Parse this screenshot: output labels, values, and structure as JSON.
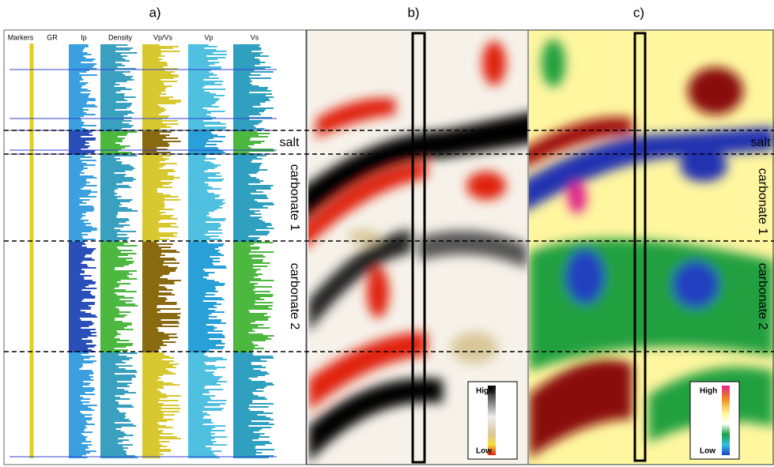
{
  "panels": [
    {
      "label": "a)"
    },
    {
      "label": "b)",
      "legend": {
        "high": "High",
        "low": "Low"
      }
    },
    {
      "label": "c)",
      "legend": {
        "high": "High",
        "low": "Low"
      }
    }
  ],
  "tracks": [
    "Markers",
    "GR",
    "Ip",
    "Density",
    "Vp/Vs",
    "Vp",
    "Vs"
  ],
  "zones": [
    "salt",
    "carbonate 1",
    "carbonate 2"
  ]
}
